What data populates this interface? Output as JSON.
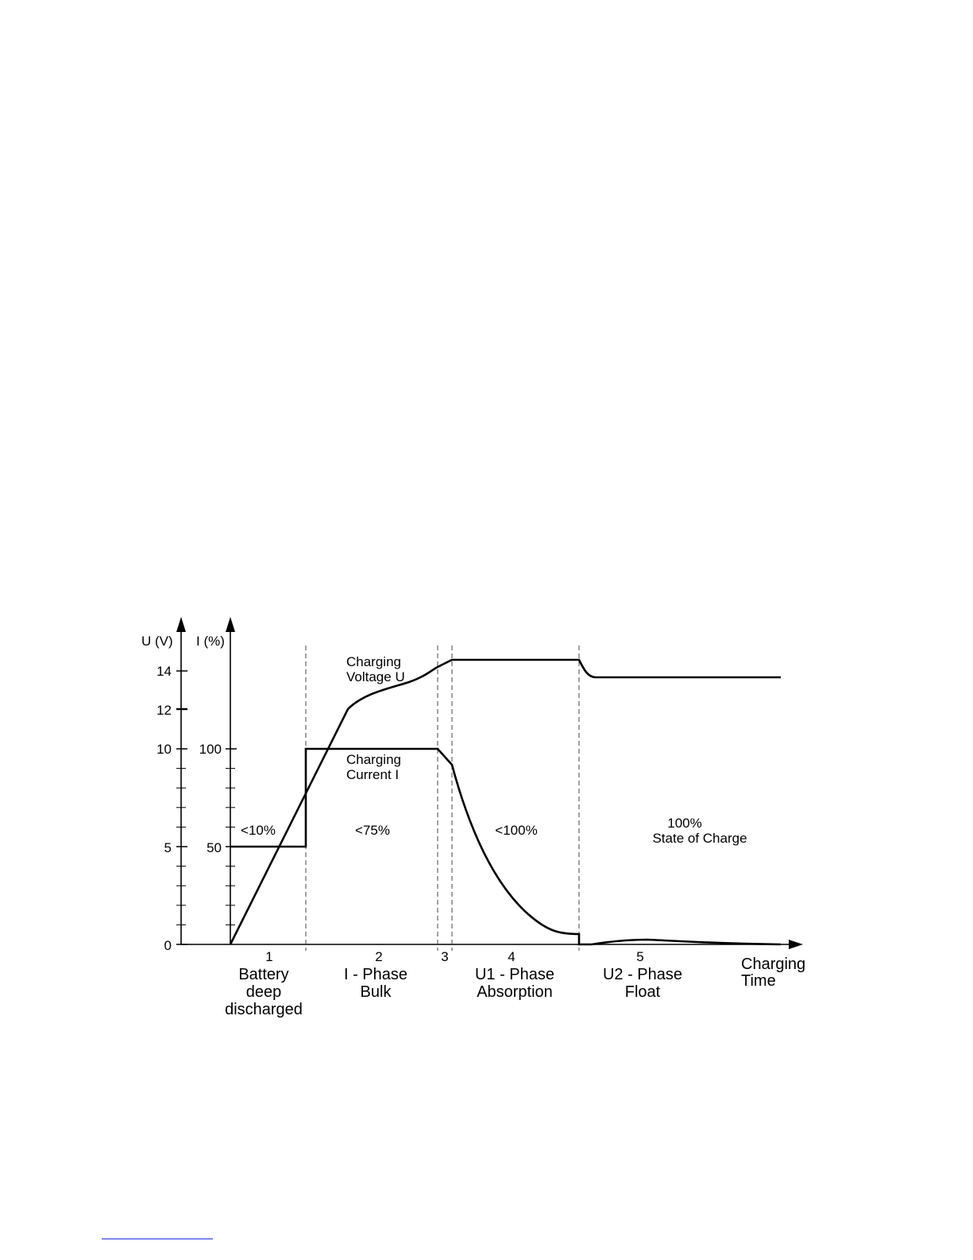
{
  "axes": {
    "y_left_label": "U (V)",
    "y_right_label": "I (%)",
    "y_left_ticks": [
      "14",
      "12",
      "10",
      "5",
      "0"
    ],
    "y_right_ticks": [
      "100",
      "50"
    ],
    "x_label_line1": "Charging",
    "x_label_line2": "Time"
  },
  "curves": {
    "voltage_label_line1": "Charging",
    "voltage_label_line2": "Voltage U",
    "current_label_line1": "Charging",
    "current_label_line2": "Current  I"
  },
  "regions": [
    {
      "state": "<10%"
    },
    {
      "state": "<75%"
    },
    {
      "state": "<100%"
    },
    {
      "state_line1": "100%",
      "state_line2": "State of Charge"
    }
  ],
  "phases": [
    {
      "number": "1",
      "line1": "Battery",
      "line2": "deep",
      "line3": "discharged"
    },
    {
      "number": "2",
      "line1": "I - Phase",
      "line2": "Bulk"
    },
    {
      "number": "3"
    },
    {
      "number": "4",
      "line1": "U1 - Phase",
      "line2": "Absorption"
    },
    {
      "number": "5",
      "line1": "U2 - Phase",
      "line2": "Float"
    }
  ]
}
